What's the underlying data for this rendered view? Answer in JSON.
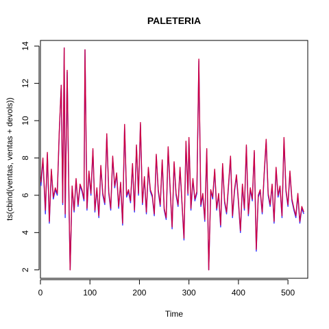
{
  "chart_data": {
    "type": "line",
    "title": "PALETERIA",
    "xlabel": "Time",
    "ylabel": "ts(cbind(ventas, ventas + devols))",
    "xlim": [
      0,
      540
    ],
    "ylim": [
      1.55,
      14.3
    ],
    "x_ticks": [
      0,
      100,
      200,
      300,
      400,
      500
    ],
    "y_ticks": [
      2,
      4,
      6,
      8,
      10,
      12,
      14
    ],
    "grid": false,
    "legend": "none",
    "series": [
      {
        "color": "#3333ff",
        "x": [
          1,
          5,
          10,
          14,
          18,
          22,
          26,
          30,
          34,
          38,
          42,
          45,
          48,
          50,
          54,
          58,
          60,
          64,
          68,
          72,
          76,
          80,
          84,
          88,
          90,
          94,
          98,
          102,
          106,
          110,
          114,
          118,
          122,
          126,
          130,
          134,
          138,
          142,
          146,
          150,
          154,
          158,
          162,
          166,
          170,
          174,
          178,
          182,
          186,
          190,
          194,
          198,
          202,
          206,
          210,
          214,
          218,
          222,
          226,
          230,
          234,
          238,
          242,
          246,
          250,
          254,
          258,
          262,
          266,
          270,
          274,
          278,
          282,
          286,
          290,
          294,
          298,
          300,
          304,
          308,
          312,
          316,
          320,
          324,
          328,
          332,
          336,
          340,
          344,
          348,
          352,
          356,
          360,
          364,
          368,
          372,
          376,
          380,
          384,
          388,
          392,
          396,
          400,
          404,
          408,
          412,
          416,
          420,
          424,
          428,
          432,
          436,
          440,
          444,
          448,
          452,
          456,
          460,
          464,
          468,
          472,
          476,
          480,
          484,
          488,
          492,
          496,
          500,
          504,
          508,
          512,
          516,
          520,
          524,
          528,
          532
        ],
        "y": [
          6.5,
          7.9,
          5.0,
          8.2,
          4.5,
          7.3,
          5.8,
          6.3,
          6.0,
          9.3,
          11.9,
          5.5,
          13.9,
          4.8,
          12.6,
          5.0,
          2.0,
          6.4,
          5.1,
          6.8,
          5.4,
          6.5,
          6.2,
          5.7,
          13.8,
          5.2,
          7.2,
          6.0,
          8.4,
          5.1,
          6.3,
          4.8,
          7.5,
          6.0,
          5.5,
          9.2,
          6.1,
          5.2,
          8.0,
          6.4,
          7.1,
          5.3,
          6.6,
          4.4,
          9.7,
          5.9,
          6.2,
          5.6,
          7.6,
          5.1,
          8.6,
          6.0,
          9.8,
          5.5,
          6.9,
          5.0,
          7.4,
          6.2,
          5.9,
          4.9,
          8.1,
          6.2,
          5.4,
          7.8,
          5.2,
          4.7,
          8.5,
          6.3,
          4.2,
          7.7,
          6.0,
          5.4,
          7.4,
          5.5,
          3.6,
          8.8,
          6.0,
          9.0,
          5.2,
          6.8,
          5.7,
          6.1,
          13.2,
          5.4,
          6.0,
          4.6,
          8.4,
          2.0,
          6.2,
          5.8,
          7.3,
          5.2,
          6.0,
          4.3,
          7.6,
          5.6,
          5.0,
          6.5,
          8.0,
          4.8,
          6.2,
          7.0,
          5.6,
          4.0,
          6.5,
          5.2,
          8.6,
          4.9,
          6.3,
          5.7,
          8.3,
          3.0,
          5.9,
          6.2,
          5.0,
          7.1,
          8.9,
          6.0,
          5.4,
          6.5,
          4.5,
          7.4,
          5.9,
          6.4,
          4.8,
          9.0,
          6.2,
          5.4,
          7.2,
          5.7,
          5.2,
          4.8,
          6.0,
          4.5,
          5.3,
          5.0
        ]
      },
      {
        "color": "#cc0044",
        "x": [
          1,
          5,
          10,
          14,
          18,
          22,
          26,
          30,
          34,
          38,
          42,
          45,
          48,
          50,
          54,
          58,
          60,
          64,
          68,
          72,
          76,
          80,
          84,
          88,
          90,
          94,
          98,
          102,
          106,
          110,
          114,
          118,
          122,
          126,
          130,
          134,
          138,
          142,
          146,
          150,
          154,
          158,
          162,
          166,
          170,
          174,
          178,
          182,
          186,
          190,
          194,
          198,
          202,
          206,
          210,
          214,
          218,
          222,
          226,
          230,
          234,
          238,
          242,
          246,
          250,
          254,
          258,
          262,
          266,
          270,
          274,
          278,
          282,
          286,
          290,
          294,
          298,
          300,
          304,
          308,
          312,
          316,
          320,
          324,
          328,
          332,
          336,
          340,
          344,
          348,
          352,
          356,
          360,
          364,
          368,
          372,
          376,
          380,
          384,
          388,
          392,
          396,
          400,
          404,
          408,
          412,
          416,
          420,
          424,
          428,
          432,
          436,
          440,
          444,
          448,
          452,
          456,
          460,
          464,
          468,
          472,
          476,
          480,
          484,
          488,
          492,
          496,
          500,
          504,
          508,
          512,
          516,
          520,
          524,
          528,
          532
        ],
        "y": [
          6.7,
          8.0,
          5.2,
          8.3,
          4.6,
          7.4,
          5.9,
          6.4,
          6.1,
          9.4,
          11.9,
          5.6,
          13.9,
          5.0,
          12.7,
          5.1,
          2.0,
          6.5,
          5.2,
          6.9,
          5.5,
          6.6,
          6.3,
          5.8,
          13.8,
          5.3,
          7.3,
          6.1,
          8.5,
          5.2,
          6.4,
          4.9,
          7.6,
          6.1,
          5.6,
          9.3,
          6.2,
          5.3,
          8.1,
          6.5,
          7.2,
          5.4,
          6.7,
          4.5,
          9.8,
          6.0,
          6.3,
          5.7,
          7.7,
          5.2,
          8.7,
          6.1,
          9.9,
          5.6,
          7.0,
          5.1,
          7.5,
          6.3,
          6.0,
          5.0,
          8.2,
          6.3,
          5.5,
          7.9,
          5.3,
          4.8,
          8.6,
          6.4,
          4.3,
          7.8,
          6.1,
          5.5,
          7.5,
          5.6,
          3.7,
          8.9,
          6.1,
          9.1,
          5.3,
          6.9,
          5.8,
          6.2,
          13.3,
          5.5,
          6.1,
          4.7,
          8.5,
          2.0,
          6.3,
          5.9,
          7.4,
          5.3,
          6.1,
          4.4,
          7.7,
          5.7,
          5.1,
          6.6,
          8.1,
          4.9,
          6.3,
          7.1,
          5.7,
          4.1,
          6.6,
          5.3,
          8.7,
          5.0,
          6.4,
          5.8,
          8.4,
          3.1,
          6.0,
          6.3,
          5.1,
          7.2,
          9.0,
          6.1,
          5.5,
          6.6,
          4.6,
          7.5,
          6.0,
          6.5,
          4.9,
          9.1,
          6.3,
          5.5,
          7.3,
          5.8,
          5.3,
          4.9,
          6.1,
          4.6,
          5.4,
          5.1
        ]
      }
    ]
  }
}
